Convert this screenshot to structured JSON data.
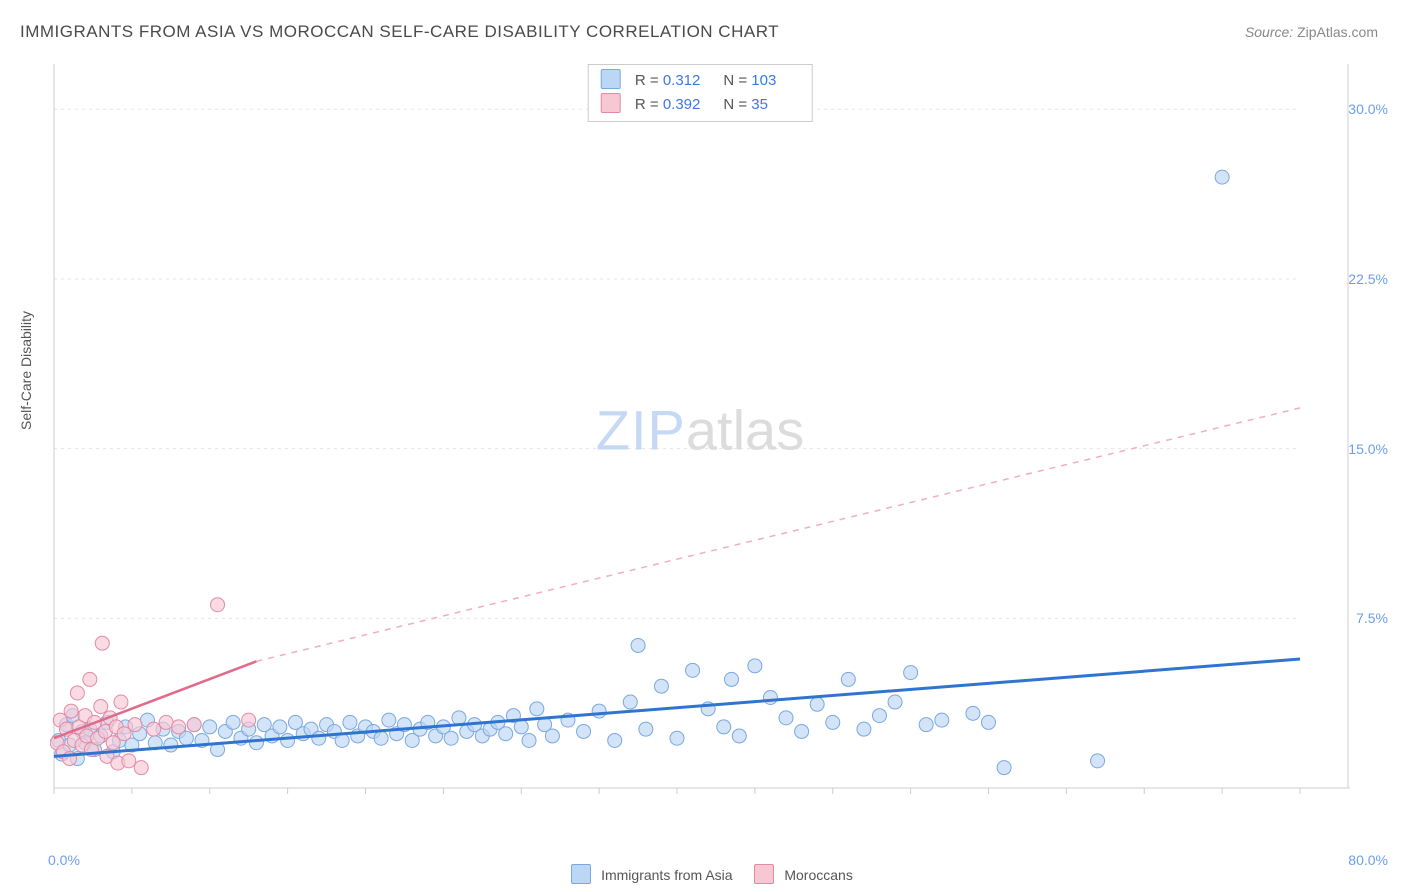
{
  "title": "IMMIGRANTS FROM ASIA VS MOROCCAN SELF-CARE DISABILITY CORRELATION CHART",
  "source_label": "Source: ",
  "source_name": "ZipAtlas.com",
  "ylabel": "Self-Care Disability",
  "watermark_zip": "ZIP",
  "watermark_atlas": "atlas",
  "chart": {
    "type": "scatter",
    "xlim": [
      0,
      80
    ],
    "ylim": [
      0,
      32
    ],
    "x_origin_label": "0.0%",
    "x_max_label": "80.0%",
    "y_ticks": [
      7.5,
      15.0,
      22.5,
      30.0
    ],
    "y_tick_labels": [
      "7.5%",
      "15.0%",
      "22.5%",
      "30.0%"
    ],
    "x_minor_ticks": [
      0,
      5,
      10,
      15,
      20,
      25,
      30,
      35,
      40,
      45,
      50,
      55,
      60,
      65,
      70,
      75,
      80
    ],
    "background_color": "#ffffff",
    "grid_color": "#e5e5e5",
    "axis_color": "#cccccc",
    "marker_radius": 7,
    "series": [
      {
        "name": "Immigrants from Asia",
        "legend_label": "Immigrants from Asia",
        "fill": "#bcd6f5",
        "stroke": "#7aa8e0",
        "fill_opacity": 0.65,
        "R": "0.312",
        "N": "103",
        "trend": {
          "x1": 0,
          "y1": 1.4,
          "x2": 80,
          "y2": 5.7,
          "color": "#2f74d0",
          "width": 3,
          "dash": "none"
        },
        "points": [
          [
            0.3,
            2.1
          ],
          [
            0.5,
            1.5
          ],
          [
            0.8,
            2.8
          ],
          [
            1.0,
            1.9
          ],
          [
            1.2,
            3.2
          ],
          [
            1.5,
            1.3
          ],
          [
            1.8,
            2.5
          ],
          [
            2.0,
            2.0
          ],
          [
            2.3,
            2.6
          ],
          [
            2.6,
            1.7
          ],
          [
            3.0,
            2.3
          ],
          [
            3.4,
            2.9
          ],
          [
            3.8,
            1.6
          ],
          [
            4.2,
            2.1
          ],
          [
            4.6,
            2.7
          ],
          [
            5.0,
            1.9
          ],
          [
            5.5,
            2.4
          ],
          [
            6.0,
            3.0
          ],
          [
            6.5,
            2.0
          ],
          [
            7.0,
            2.6
          ],
          [
            7.5,
            1.9
          ],
          [
            8.0,
            2.5
          ],
          [
            8.5,
            2.2
          ],
          [
            9.0,
            2.8
          ],
          [
            9.5,
            2.1
          ],
          [
            10.0,
            2.7
          ],
          [
            10.5,
            1.7
          ],
          [
            11.0,
            2.5
          ],
          [
            11.5,
            2.9
          ],
          [
            12.0,
            2.2
          ],
          [
            12.5,
            2.6
          ],
          [
            13.0,
            2.0
          ],
          [
            13.5,
            2.8
          ],
          [
            14.0,
            2.3
          ],
          [
            14.5,
            2.7
          ],
          [
            15.0,
            2.1
          ],
          [
            15.5,
            2.9
          ],
          [
            16.0,
            2.4
          ],
          [
            16.5,
            2.6
          ],
          [
            17.0,
            2.2
          ],
          [
            17.5,
            2.8
          ],
          [
            18.0,
            2.5
          ],
          [
            18.5,
            2.1
          ],
          [
            19.0,
            2.9
          ],
          [
            19.5,
            2.3
          ],
          [
            20.0,
            2.7
          ],
          [
            20.5,
            2.5
          ],
          [
            21.0,
            2.2
          ],
          [
            21.5,
            3.0
          ],
          [
            22.0,
            2.4
          ],
          [
            22.5,
            2.8
          ],
          [
            23.0,
            2.1
          ],
          [
            23.5,
            2.6
          ],
          [
            24.0,
            2.9
          ],
          [
            24.5,
            2.3
          ],
          [
            25.0,
            2.7
          ],
          [
            25.5,
            2.2
          ],
          [
            26.0,
            3.1
          ],
          [
            26.5,
            2.5
          ],
          [
            27.0,
            2.8
          ],
          [
            27.5,
            2.3
          ],
          [
            28.0,
            2.6
          ],
          [
            28.5,
            2.9
          ],
          [
            29.0,
            2.4
          ],
          [
            29.5,
            3.2
          ],
          [
            30.0,
            2.7
          ],
          [
            30.5,
            2.1
          ],
          [
            31.0,
            3.5
          ],
          [
            31.5,
            2.8
          ],
          [
            32.0,
            2.3
          ],
          [
            33.0,
            3.0
          ],
          [
            34.0,
            2.5
          ],
          [
            35.0,
            3.4
          ],
          [
            36.0,
            2.1
          ],
          [
            37.0,
            3.8
          ],
          [
            37.5,
            6.3
          ],
          [
            38.0,
            2.6
          ],
          [
            39.0,
            4.5
          ],
          [
            40.0,
            2.2
          ],
          [
            41.0,
            5.2
          ],
          [
            42.0,
            3.5
          ],
          [
            43.0,
            2.7
          ],
          [
            43.5,
            4.8
          ],
          [
            44.0,
            2.3
          ],
          [
            45.0,
            5.4
          ],
          [
            46.0,
            4.0
          ],
          [
            47.0,
            3.1
          ],
          [
            48.0,
            2.5
          ],
          [
            49.0,
            3.7
          ],
          [
            50.0,
            2.9
          ],
          [
            51.0,
            4.8
          ],
          [
            52.0,
            2.6
          ],
          [
            53.0,
            3.2
          ],
          [
            54.0,
            3.8
          ],
          [
            55.0,
            5.1
          ],
          [
            56.0,
            2.8
          ],
          [
            57.0,
            3.0
          ],
          [
            59.0,
            3.3
          ],
          [
            60.0,
            2.9
          ],
          [
            61.0,
            0.9
          ],
          [
            67.0,
            1.2
          ],
          [
            75.0,
            27.0
          ]
        ]
      },
      {
        "name": "Moroccans",
        "legend_label": "Moroccans",
        "fill": "#f7c7d4",
        "stroke": "#e38aa3",
        "fill_opacity": 0.65,
        "R": "0.392",
        "N": "35",
        "trend_solid": {
          "x1": 0,
          "y1": 2.2,
          "x2": 13,
          "y2": 5.6,
          "color": "#e06b8a",
          "width": 2.5
        },
        "trend_dashed": {
          "x1": 13,
          "y1": 5.6,
          "x2": 80,
          "y2": 16.8,
          "color": "#f1aebf",
          "width": 1.5,
          "dash": "6,6"
        },
        "points": [
          [
            0.2,
            2.0
          ],
          [
            0.4,
            3.0
          ],
          [
            0.6,
            1.6
          ],
          [
            0.8,
            2.6
          ],
          [
            1.0,
            1.3
          ],
          [
            1.1,
            3.4
          ],
          [
            1.3,
            2.1
          ],
          [
            1.5,
            4.2
          ],
          [
            1.6,
            2.7
          ],
          [
            1.8,
            1.9
          ],
          [
            2.0,
            3.2
          ],
          [
            2.1,
            2.3
          ],
          [
            2.3,
            4.8
          ],
          [
            2.4,
            1.7
          ],
          [
            2.6,
            2.9
          ],
          [
            2.8,
            2.2
          ],
          [
            3.0,
            3.6
          ],
          [
            3.1,
            6.4
          ],
          [
            3.3,
            2.5
          ],
          [
            3.4,
            1.4
          ],
          [
            3.6,
            3.1
          ],
          [
            3.8,
            2.0
          ],
          [
            4.0,
            2.7
          ],
          [
            4.1,
            1.1
          ],
          [
            4.3,
            3.8
          ],
          [
            4.5,
            2.4
          ],
          [
            4.8,
            1.2
          ],
          [
            5.2,
            2.8
          ],
          [
            5.6,
            0.9
          ],
          [
            6.4,
            2.6
          ],
          [
            7.2,
            2.9
          ],
          [
            8.0,
            2.7
          ],
          [
            9.0,
            2.8
          ],
          [
            10.5,
            8.1
          ],
          [
            12.5,
            3.0
          ]
        ]
      }
    ],
    "legend_labels": {
      "R": "R =",
      "N": "N ="
    }
  }
}
